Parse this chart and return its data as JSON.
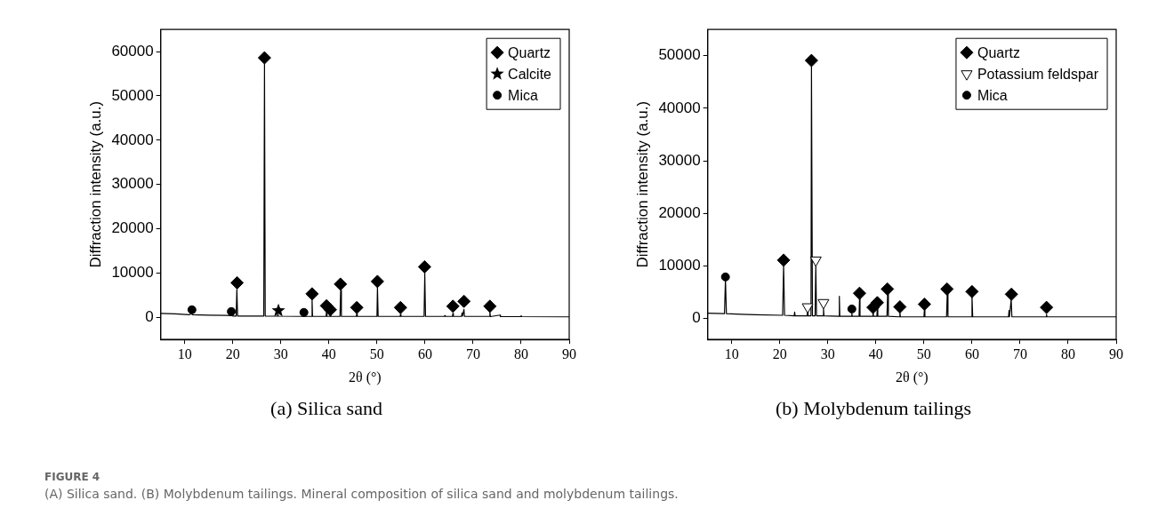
{
  "chart_data": [
    {
      "type": "line",
      "title": "(a) Silica sand",
      "xlabel": "2θ (°)",
      "ylabel": "Diffraction intensity (a.u.)",
      "xlim": [
        5,
        90
      ],
      "xticks": [
        10,
        20,
        30,
        40,
        50,
        60,
        70,
        80,
        90
      ],
      "ylim": [
        -5000,
        65000
      ],
      "yticks": [
        0,
        10000,
        20000,
        30000,
        40000,
        50000,
        60000
      ],
      "grid": false,
      "legend": "top right",
      "marker": "none",
      "line_style": "solid",
      "annotations": [
        "FIGURE 4",
        "(A) Silica sand. (B) Molybdenum tailings. Mineral composition of silica sand and molybdenum tailings."
      ],
      "series": [
        {
          "color": "#000000",
          "x": [
            5,
            8,
            11,
            11.4,
            11.6,
            15,
            19.7,
            19.8,
            20,
            20.7,
            20.85,
            21,
            24,
            26.45,
            26.6,
            26.75,
            29.3,
            29.4,
            29.5,
            34.9,
            35,
            35.1,
            36.4,
            36.5,
            36.6,
            39.4,
            39.5,
            39.6,
            40.2,
            40.3,
            40.4,
            42.3,
            42.45,
            42.6,
            45.7,
            45.8,
            45.9,
            50,
            50.1,
            50.25,
            54.8,
            54.9,
            55,
            59.8,
            59.95,
            60.1,
            64,
            64.1,
            64.2,
            65.7,
            65.8,
            65.9,
            67.6,
            67.7,
            67.8,
            68.1,
            68.2,
            73.4,
            73.5,
            73.6,
            75.6,
            75.7,
            79.9,
            80,
            80.1,
            90
          ],
          "values": [
            900,
            800,
            600,
            800,
            600,
            500,
            400,
            700,
            300,
            300,
            6300,
            300,
            300,
            300,
            57200,
            300,
            250,
            600,
            250,
            200,
            500,
            200,
            200,
            4000,
            200,
            200,
            1200,
            200,
            200,
            900,
            200,
            200,
            6100,
            200,
            200,
            800,
            200,
            200,
            6800,
            200,
            200,
            700,
            200,
            200,
            10000,
            200,
            200,
            400,
            200,
            200,
            900,
            200,
            200,
            1000,
            300,
            1800,
            200,
            200,
            1200,
            150,
            500,
            150,
            150,
            400,
            150,
            100
          ]
        },
        {
          "type": "scatter",
          "name": "Quartz",
          "color": "#000000",
          "marker": "diamond",
          "x": [
            20.9,
            26.6,
            36.5,
            39.5,
            40.3,
            42.4,
            45.8,
            50.1,
            54.9,
            59.9,
            65.8,
            68.1,
            73.5
          ],
          "values": [
            7800,
            58600,
            5300,
            2600,
            1700,
            7500,
            2200,
            8100,
            2200,
            11400,
            2500,
            3600,
            2500
          ]
        },
        {
          "type": "scatter",
          "name": "Calcite",
          "color": "#000000",
          "marker": "star",
          "x": [
            29.5
          ],
          "values": [
            1500
          ]
        },
        {
          "type": "scatter",
          "name": "Mica",
          "color": "#000000",
          "marker": "circle",
          "x": [
            11.5,
            19.7,
            34.8
          ],
          "values": [
            1700,
            1300,
            1100
          ]
        }
      ]
    },
    {
      "type": "line",
      "title": "(b) Molybdenum tailings",
      "xlabel": "2θ (°)",
      "ylabel": "Diffraction intensity (a.u.)",
      "xlim": [
        5,
        90
      ],
      "xticks": [
        10,
        20,
        30,
        40,
        50,
        60,
        70,
        80,
        90
      ],
      "ylim": [
        -4000,
        55000
      ],
      "yticks": [
        0,
        10000,
        20000,
        30000,
        40000,
        50000
      ],
      "grid": false,
      "legend": "top right",
      "marker": "none",
      "line_style": "solid",
      "series": [
        {
          "color": "#000000",
          "x": [
            5,
            8.5,
            8.7,
            8.9,
            12,
            15,
            20.6,
            20.8,
            21,
            23,
            23.1,
            23.2,
            25.7,
            25.8,
            25.9,
            26.5,
            26.6,
            26.8,
            27.35,
            27.5,
            27.65,
            29,
            29.1,
            29.2,
            32.3,
            32.4,
            32.5,
            34.9,
            35,
            35.1,
            36.5,
            36.6,
            36.7,
            39.3,
            39.4,
            39.5,
            40.2,
            40.3,
            40.4,
            42.3,
            42.45,
            42.6,
            44.9,
            45,
            45.1,
            50,
            50.1,
            50.2,
            54.7,
            54.85,
            55,
            59.85,
            60,
            60.15,
            67.6,
            67.7,
            67.8,
            68.15,
            68.3,
            75.4,
            75.5,
            75.6,
            90
          ],
          "values": [
            1000,
            900,
            7500,
            900,
            800,
            700,
            600,
            10100,
            600,
            500,
            1200,
            500,
            500,
            1500,
            500,
            500,
            47900,
            500,
            500,
            10100,
            500,
            500,
            1800,
            500,
            400,
            4200,
            400,
            400,
            900,
            400,
            400,
            3900,
            400,
            400,
            1500,
            400,
            400,
            2000,
            400,
            400,
            4700,
            400,
            300,
            1200,
            300,
            300,
            1700,
            300,
            300,
            4700,
            300,
            300,
            4200,
            300,
            300,
            1500,
            300,
            3600,
            300,
            300,
            800,
            300,
            300
          ]
        },
        {
          "type": "scatter",
          "name": "Quartz",
          "color": "#000000",
          "marker": "diamond",
          "x": [
            20.8,
            26.6,
            36.6,
            39.4,
            40.3,
            42.4,
            45,
            50.1,
            54.8,
            60,
            68.2,
            75.5
          ],
          "values": [
            11100,
            49100,
            4800,
            2100,
            3000,
            5600,
            2200,
            2700,
            5600,
            5100,
            4600,
            2100
          ]
        },
        {
          "type": "scatter",
          "name": "Potassium feldspar",
          "color": "#000000",
          "marker": "triangle-down",
          "x": [
            25.8,
            27.5,
            29.1
          ],
          "values": [
            2200,
            11100,
            3000
          ]
        },
        {
          "type": "scatter",
          "name": "Mica",
          "color": "#000000",
          "marker": "circle",
          "x": [
            8.7,
            35
          ],
          "values": [
            7900,
            1800
          ]
        }
      ]
    }
  ]
}
